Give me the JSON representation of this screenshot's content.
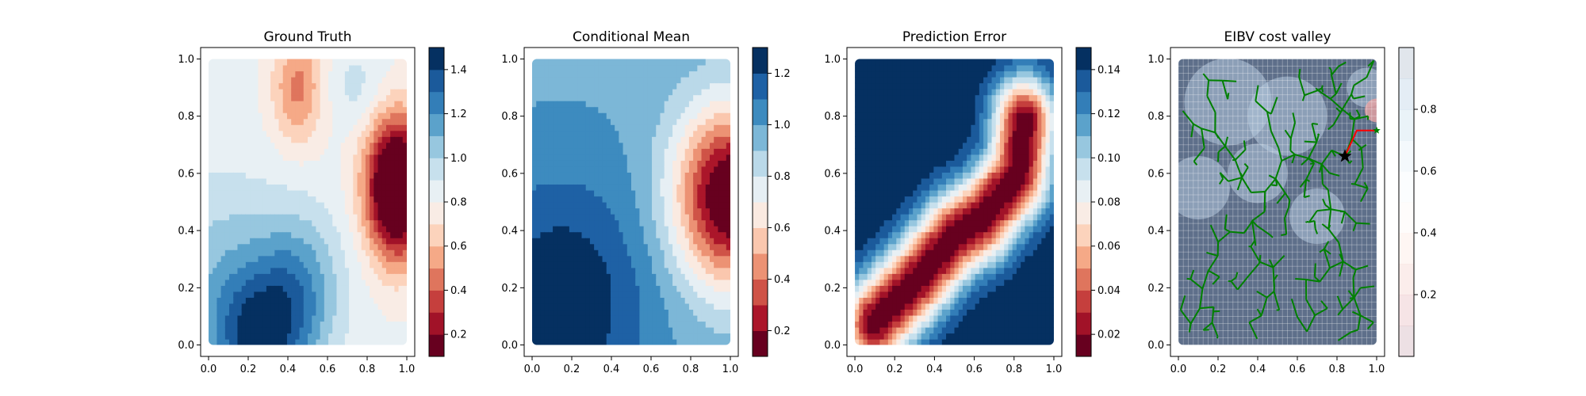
{
  "chart_data": [
    {
      "type": "heatmap",
      "title": "Ground Truth",
      "colormap": "RdBu",
      "levels": [
        0.1,
        0.2,
        0.3,
        0.4,
        0.5,
        0.6,
        0.7,
        0.8,
        0.9,
        1.0,
        1.1,
        1.2,
        1.3,
        1.4,
        1.5
      ],
      "colorbar_ticks": [
        "0.2",
        "0.4",
        "0.6",
        "0.8",
        "1.0",
        "1.2",
        "1.4"
      ],
      "xticks": [
        "0.0",
        "0.2",
        "0.4",
        "0.6",
        "0.8",
        "1.0"
      ],
      "yticks": [
        "0.0",
        "0.2",
        "0.4",
        "0.6",
        "0.8",
        "1.0"
      ],
      "xlim": [
        -0.04,
        1.04
      ],
      "ylim": [
        -0.04,
        1.04
      ],
      "domain_x": [
        0,
        1
      ],
      "domain_y": [
        0,
        1
      ],
      "field": [
        {
          "x": 0.95,
          "y": 0.55,
          "sx": 0.11,
          "sy": 0.17,
          "a": -1.05
        },
        {
          "x": 0.45,
          "y": 0.9,
          "sx": 0.09,
          "sy": 0.14,
          "a": -0.35
        },
        {
          "x": 0.25,
          "y": 0.02,
          "sx": 0.18,
          "sy": 0.16,
          "a": 0.55
        },
        {
          "x": 0.45,
          "y": 0.22,
          "sx": 0.16,
          "sy": 0.18,
          "a": 0.3
        },
        {
          "x": 0.05,
          "y": 0.3,
          "sx": 0.25,
          "sy": 0.22,
          "a": 0.2
        },
        {
          "x": 0.75,
          "y": 0.9,
          "sx": 0.1,
          "sy": 0.1,
          "a": 0.12
        }
      ],
      "base": 0.82
    },
    {
      "type": "heatmap",
      "title": "Conditional Mean",
      "colormap": "RdBu",
      "levels": [
        0.1,
        0.2,
        0.3,
        0.4,
        0.5,
        0.6,
        0.7,
        0.8,
        0.9,
        1.0,
        1.1,
        1.2,
        1.3
      ],
      "colorbar_ticks": [
        "0.2",
        "0.4",
        "0.6",
        "0.8",
        "1.0",
        "1.2"
      ],
      "xticks": [
        "0.0",
        "0.2",
        "0.4",
        "0.6",
        "0.8",
        "1.0"
      ],
      "yticks": [
        "0.0",
        "0.2",
        "0.4",
        "0.6",
        "0.8",
        "1.0"
      ],
      "xlim": [
        -0.04,
        1.04
      ],
      "ylim": [
        -0.04,
        1.04
      ],
      "domain_x": [
        0,
        1
      ],
      "domain_y": [
        0,
        1
      ],
      "field": [
        {
          "x": 1.0,
          "y": 0.52,
          "sx": 0.2,
          "sy": 0.22,
          "a": -0.95
        },
        {
          "x": 0.15,
          "y": 0.15,
          "sx": 0.3,
          "sy": 0.3,
          "a": 0.32
        }
      ],
      "base": 0.98
    },
    {
      "type": "heatmap",
      "title": "Prediction Error",
      "colormap": "RdBu",
      "levels": [
        0.01,
        0.02,
        0.03,
        0.04,
        0.05,
        0.06,
        0.07,
        0.08,
        0.09,
        0.1,
        0.11,
        0.12,
        0.13,
        0.14,
        0.15
      ],
      "colorbar_ticks": [
        "0.02",
        "0.04",
        "0.06",
        "0.08",
        "0.10",
        "0.12",
        "0.14"
      ],
      "xticks": [
        "0.0",
        "0.2",
        "0.4",
        "0.6",
        "0.8",
        "1.0"
      ],
      "yticks": [
        "0.0",
        "0.2",
        "0.4",
        "0.6",
        "0.8",
        "1.0"
      ],
      "xlim": [
        -0.04,
        1.04
      ],
      "ylim": [
        -0.04,
        1.04
      ],
      "domain_x": [
        0,
        1
      ],
      "domain_y": [
        0,
        1
      ],
      "path_points": [
        [
          0.1,
          0.08
        ],
        [
          0.3,
          0.22
        ],
        [
          0.5,
          0.38
        ],
        [
          0.65,
          0.45
        ],
        [
          0.82,
          0.6
        ],
        [
          0.85,
          0.78
        ]
      ],
      "base": 0.15
    },
    {
      "type": "heatmap",
      "title": "EIBV cost valley",
      "colormap": "RdBu",
      "levels": [
        0.0,
        0.1,
        0.2,
        0.3,
        0.4,
        0.5,
        0.6,
        0.7,
        0.8,
        0.9,
        1.0
      ],
      "colorbar_ticks": [
        "0.2",
        "0.4",
        "0.6",
        "0.8"
      ],
      "xticks": [
        "0.0",
        "0.2",
        "0.4",
        "0.6",
        "0.8",
        "1.0"
      ],
      "yticks": [
        "0.0",
        "0.2",
        "0.4",
        "0.6",
        "0.8",
        "1.0"
      ],
      "xlim": [
        -0.04,
        1.04
      ],
      "ylim": [
        -0.04,
        1.04
      ],
      "domain_x": [
        0,
        1
      ],
      "domain_y": [
        0,
        1
      ],
      "current_location": [
        0.84,
        0.66
      ],
      "planned_path": [
        [
          0.84,
          0.66
        ],
        [
          0.9,
          0.75
        ],
        [
          1.0,
          0.75
        ]
      ],
      "tree_color": "#008000",
      "path_color": "#ff0000"
    }
  ]
}
